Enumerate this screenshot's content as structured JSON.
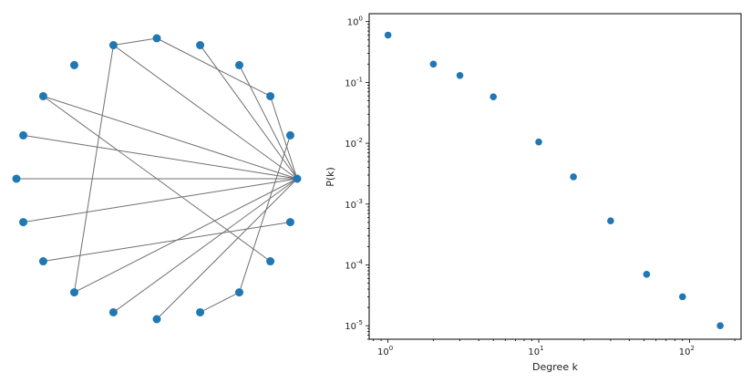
{
  "colors": {
    "node": "#1f77b4",
    "edge": "#707070",
    "point": "#1f77b4",
    "axis": "#000000"
  },
  "network": {
    "node_count": 20,
    "hub_node": 0,
    "edges": [
      [
        0,
        2
      ],
      [
        0,
        3
      ],
      [
        0,
        4
      ],
      [
        0,
        6
      ],
      [
        0,
        8
      ],
      [
        0,
        9
      ],
      [
        0,
        10
      ],
      [
        0,
        11
      ],
      [
        0,
        13
      ],
      [
        0,
        14
      ],
      [
        0,
        15
      ],
      [
        2,
        5
      ],
      [
        5,
        6
      ],
      [
        6,
        13
      ],
      [
        8,
        18
      ],
      [
        12,
        19
      ],
      [
        1,
        17
      ],
      [
        16,
        17
      ]
    ]
  },
  "chart_data": {
    "type": "scatter",
    "xscale": "log",
    "yscale": "log",
    "xlabel": "Degree k",
    "ylabel": "P(k)",
    "xlim": [
      0.75,
      220
    ],
    "ylim": [
      6e-06,
      1.35
    ],
    "x": [
      1,
      2,
      3,
      5,
      10,
      17,
      30,
      52,
      90,
      160
    ],
    "y": [
      0.6,
      0.2,
      0.13,
      0.058,
      0.0105,
      0.0028,
      0.00053,
      7e-05,
      3e-05,
      1e-05
    ],
    "x_ticks": [
      {
        "value": 1,
        "base": "10",
        "exp": "0"
      },
      {
        "value": 10,
        "base": "10",
        "exp": "1"
      },
      {
        "value": 100,
        "base": "10",
        "exp": "2"
      }
    ],
    "y_ticks": [
      {
        "value": 1,
        "base": "10",
        "exp": "0"
      },
      {
        "value": 0.1,
        "base": "10",
        "exp": "-1"
      },
      {
        "value": 0.01,
        "base": "10",
        "exp": "-2"
      },
      {
        "value": 0.001,
        "base": "10",
        "exp": "-3"
      },
      {
        "value": 0.0001,
        "base": "10",
        "exp": "-4"
      },
      {
        "value": 1e-05,
        "base": "10",
        "exp": "-5"
      }
    ]
  }
}
